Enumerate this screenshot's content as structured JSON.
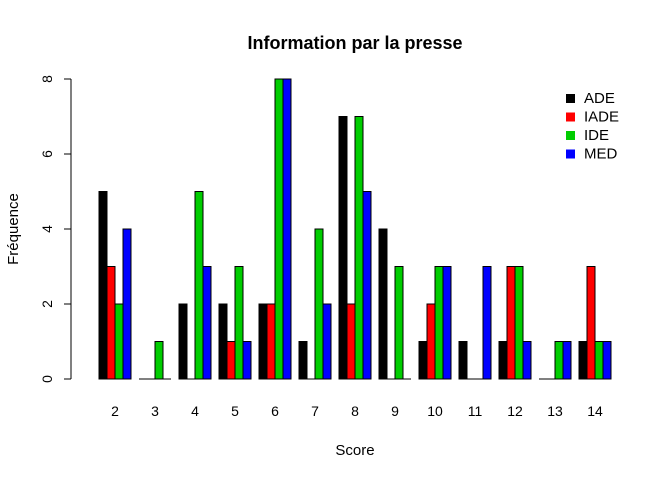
{
  "chart_data": {
    "type": "bar",
    "title": "Information par la presse",
    "xlabel": "Score",
    "ylabel": "Fréquence",
    "categories": [
      "2",
      "3",
      "4",
      "5",
      "6",
      "7",
      "8",
      "9",
      "10",
      "11",
      "12",
      "13",
      "14"
    ],
    "series": [
      {
        "name": "ADE",
        "color": "#000000",
        "values": [
          5,
          0,
          2,
          2,
          2,
          1,
          7,
          4,
          1,
          1,
          1,
          0,
          1
        ]
      },
      {
        "name": "IADE",
        "color": "#ff0000",
        "values": [
          3,
          0,
          0,
          1,
          2,
          0,
          2,
          0,
          2,
          0,
          3,
          0,
          3
        ]
      },
      {
        "name": "IDE",
        "color": "#00cd00",
        "values": [
          2,
          1,
          5,
          3,
          8,
          4,
          7,
          3,
          3,
          0,
          3,
          1,
          1
        ]
      },
      {
        "name": "MED",
        "color": "#0000ff",
        "values": [
          4,
          0,
          3,
          1,
          8,
          2,
          5,
          0,
          3,
          3,
          1,
          1,
          1
        ]
      }
    ],
    "ylim": [
      0,
      8
    ],
    "yticks": [
      "0",
      "2",
      "4",
      "6",
      "8"
    ],
    "legend_position": "top-right",
    "grid": false
  }
}
